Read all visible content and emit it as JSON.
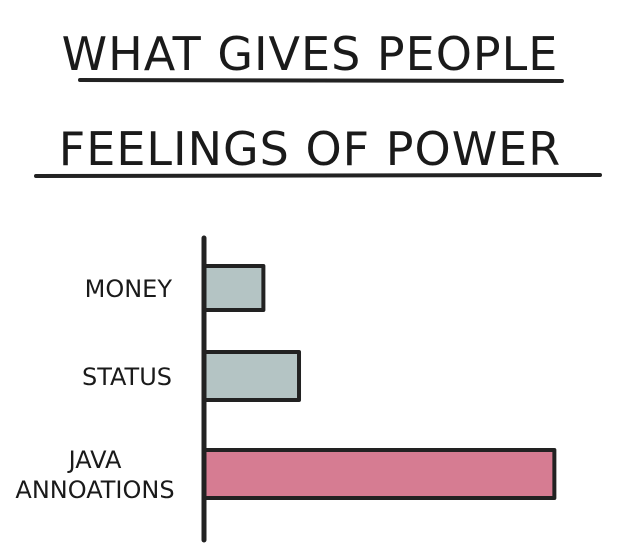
{
  "chart_data": {
    "type": "bar",
    "orientation": "horizontal",
    "title_lines": [
      "WHAT GIVES PEOPLE",
      "FEELINGS OF POWER"
    ],
    "categories": [
      {
        "lines": [
          "MONEY"
        ]
      },
      {
        "lines": [
          "STATUS"
        ]
      },
      {
        "lines": [
          "JAVA",
          "ANNOATIONS"
        ]
      }
    ],
    "values": [
      1,
      1.6,
      5.9
    ],
    "xlim": [
      0,
      6.5
    ],
    "colors": [
      "#b4c4c4",
      "#b4c4c4",
      "#d67c92"
    ],
    "stroke_color": "#222222",
    "grid": false,
    "legend": "none"
  }
}
